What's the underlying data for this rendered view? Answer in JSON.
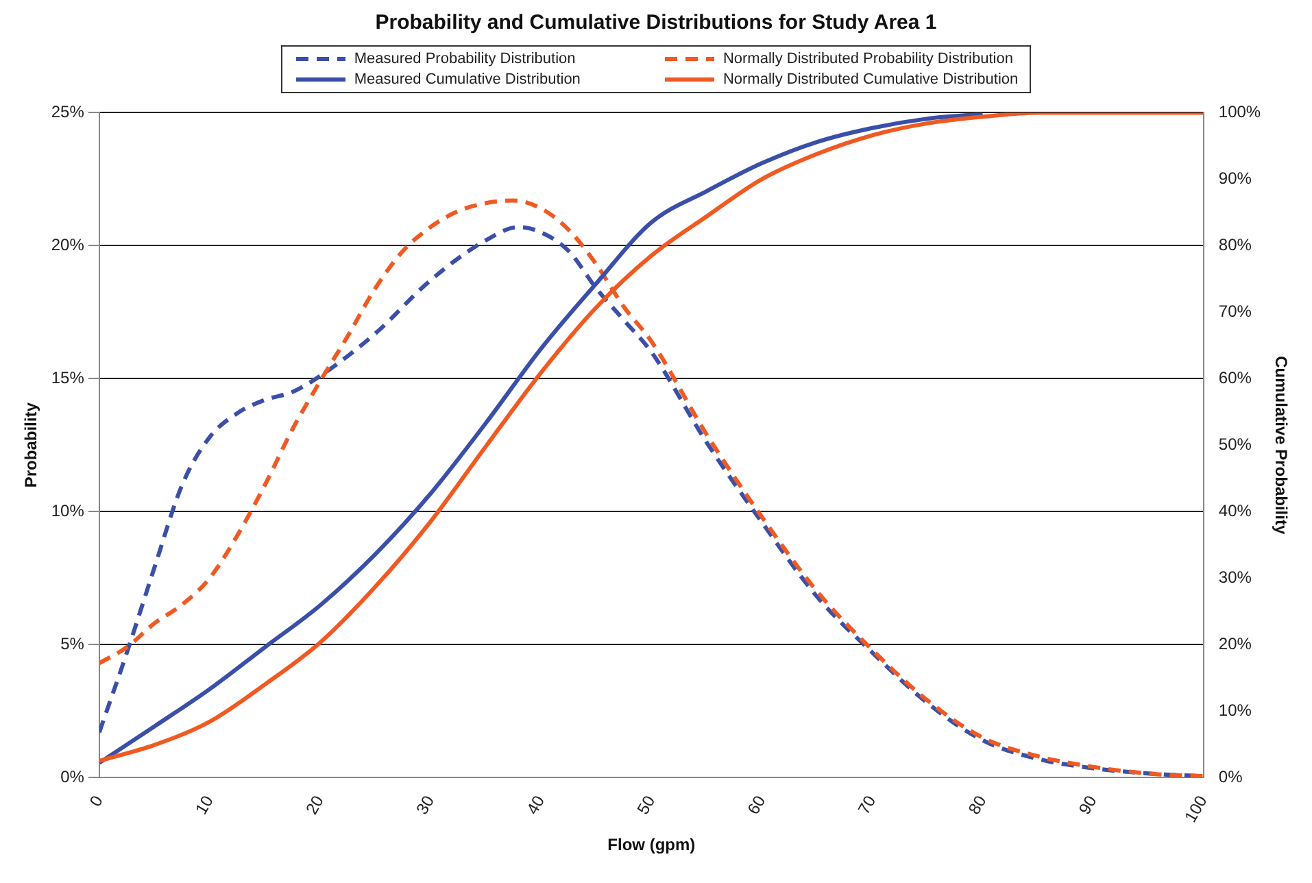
{
  "chart_data": {
    "type": "line",
    "title": "Probability and Cumulative Distributions for Study Area 1",
    "xlabel": "Flow (gpm)",
    "ylabel": "Probability",
    "y2label": "Cumulative Probability",
    "xlim": [
      0,
      100
    ],
    "xticks": [
      0,
      10,
      20,
      30,
      40,
      50,
      60,
      70,
      80,
      90,
      100
    ],
    "ylim": [
      0,
      25
    ],
    "yticks": [
      {
        "value": 0,
        "label": "0%"
      },
      {
        "value": 5,
        "label": "5%"
      },
      {
        "value": 10,
        "label": "10%"
      },
      {
        "value": 15,
        "label": "15%"
      },
      {
        "value": 20,
        "label": "20%"
      },
      {
        "value": 25,
        "label": "25%"
      }
    ],
    "y2lim": [
      0,
      100
    ],
    "y2ticks": [
      {
        "value": 0,
        "label": "0%"
      },
      {
        "value": 10,
        "label": "10%"
      },
      {
        "value": 20,
        "label": "20%"
      },
      {
        "value": 30,
        "label": "30%"
      },
      {
        "value": 40,
        "label": "40%"
      },
      {
        "value": 50,
        "label": "50%"
      },
      {
        "value": 60,
        "label": "60%"
      },
      {
        "value": 70,
        "label": "70%"
      },
      {
        "value": 80,
        "label": "80%"
      },
      {
        "value": 90,
        "label": "90%"
      },
      {
        "value": 100,
        "label": "100%"
      }
    ],
    "grid": "y",
    "legend": "top",
    "marker": "none",
    "series": [
      {
        "name": "Measured Probability Distribution",
        "color": "#3a4fa8",
        "line_style": "dashed",
        "x": [
          0,
          2.5,
          5,
          7.5,
          10,
          12.5,
          15,
          17.5,
          20,
          25,
          30,
          35,
          38,
          40,
          42.5,
          45,
          47.5,
          50,
          55,
          60,
          65,
          70,
          75,
          80,
          85,
          90,
          95,
          100
        ],
        "values": [
          1.7,
          4.7,
          7.9,
          11.0,
          12.8,
          13.7,
          14.2,
          14.5,
          15.1,
          16.7,
          18.7,
          20.2,
          20.7,
          20.5,
          19.8,
          18.4,
          17.2,
          16.0,
          12.6,
          9.6,
          6.8,
          4.7,
          2.8,
          1.4,
          0.7,
          0.35,
          0.15,
          0.05
        ]
      },
      {
        "name": "Normally Distributed Probability Distribution",
        "color": "#f05a22",
        "line_style": "dashed",
        "x": [
          0,
          2.5,
          5,
          7.5,
          10,
          12.5,
          15,
          17.5,
          20,
          22.5,
          25,
          27.5,
          30,
          32.5,
          35,
          37.5,
          40,
          42.5,
          45,
          47.5,
          50,
          55,
          60,
          65,
          70,
          75,
          80,
          85,
          90,
          95,
          100
        ],
        "values": [
          4.3,
          4.9,
          5.8,
          6.5,
          7.5,
          9.1,
          11.0,
          13.1,
          14.9,
          16.6,
          18.4,
          19.8,
          20.7,
          21.3,
          21.6,
          21.7,
          21.4,
          20.6,
          19.3,
          17.7,
          16.4,
          12.9,
          9.8,
          7.0,
          4.8,
          2.9,
          1.5,
          0.8,
          0.4,
          0.15,
          0.05
        ]
      },
      {
        "name": "Measured Cumulative Distribution",
        "color": "#3a4fa8",
        "line_style": "solid",
        "axis": "y2",
        "x": [
          0,
          5,
          10,
          15,
          20,
          25,
          30,
          35,
          40,
          45,
          50,
          55,
          60,
          65,
          70,
          75,
          80
        ],
        "values": [
          2.2,
          7.7,
          13.3,
          19.6,
          25.9,
          33.6,
          42.7,
          53.3,
          64.5,
          74.3,
          83.5,
          88.2,
          92.4,
          95.6,
          97.7,
          99.1,
          99.8
        ]
      },
      {
        "name": "Normally Distributed Cumulative Distribution",
        "color": "#f05a22",
        "line_style": "solid",
        "axis": "y2",
        "x": [
          0,
          5,
          10,
          15,
          20,
          25,
          30,
          35,
          40,
          45,
          50,
          55,
          60,
          65,
          70,
          75,
          80,
          85,
          90,
          95,
          100
        ],
        "values": [
          2.5,
          4.9,
          8.4,
          14.0,
          20.3,
          28.7,
          38.5,
          49.8,
          60.9,
          70.7,
          78.5,
          84.4,
          90.0,
          93.8,
          96.6,
          98.4,
          99.4,
          100,
          100,
          100,
          100
        ]
      }
    ]
  }
}
